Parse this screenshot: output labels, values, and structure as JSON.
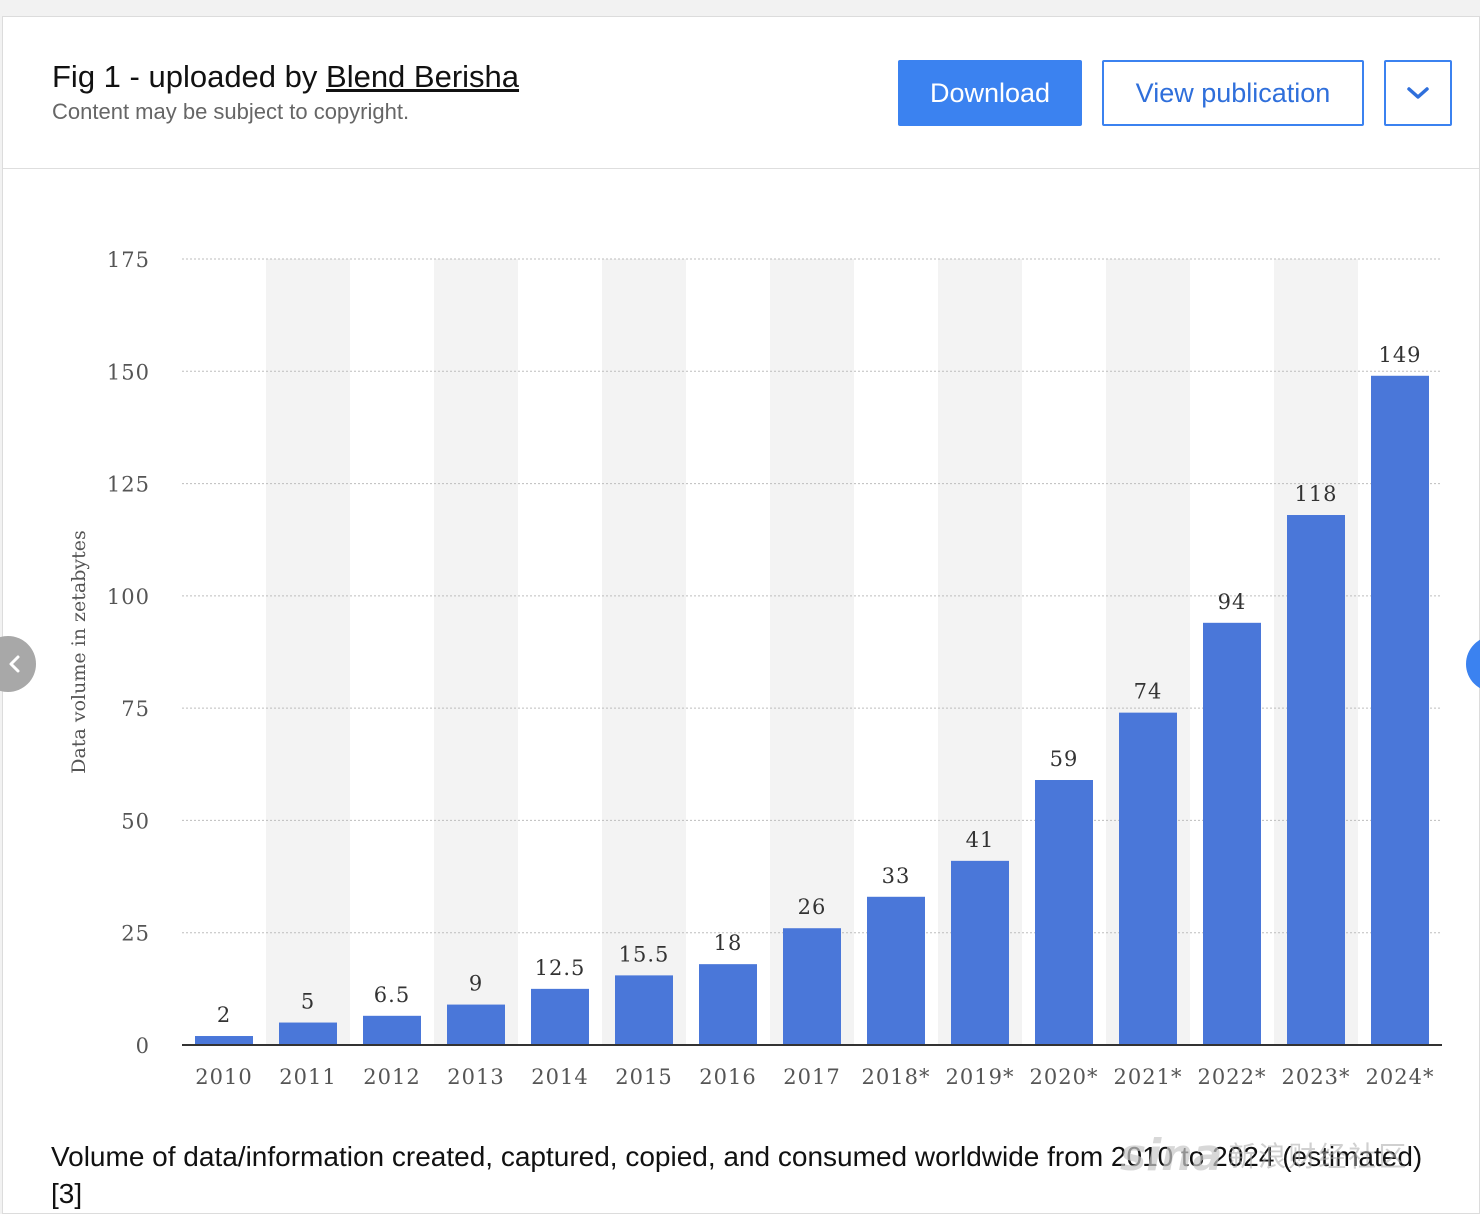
{
  "header": {
    "title_prefix": "Fig 1 - uploaded by ",
    "author": "Blend Berisha",
    "subtitle": "Content may be subject to copyright.",
    "download_label": "Download",
    "view_publication_label": "View publication",
    "more_icon": "chevron-down-icon"
  },
  "navigation": {
    "prev_icon": "chevron-left-icon",
    "next_icon": "chevron-right-icon"
  },
  "caption": "Volume of data/information created, captured, copied, and consumed worldwide from 2010 to 2024 (estimated) [3]",
  "watermark": {
    "brand": "sina",
    "text": "新浪财经社区"
  },
  "colors": {
    "accent": "#3b82f0",
    "bar": "#4a77d9",
    "band": "#f3f3f3"
  },
  "chart_data": {
    "type": "bar",
    "title": "",
    "xlabel": "",
    "ylabel": "Data volume in zetabytes",
    "ylim": [
      0,
      175
    ],
    "yticks": [
      0,
      25,
      50,
      75,
      100,
      125,
      150,
      175
    ],
    "grid": true,
    "categories": [
      "2010",
      "2011",
      "2012",
      "2013",
      "2014",
      "2015",
      "2016",
      "2017",
      "2018*",
      "2019*",
      "2020*",
      "2021*",
      "2022*",
      "2023*",
      "2024*"
    ],
    "values": [
      2,
      5,
      6.5,
      9,
      12.5,
      15.5,
      18,
      26,
      33,
      41,
      59,
      74,
      94,
      118,
      149
    ],
    "value_labels": [
      "2",
      "5",
      "6.5",
      "9",
      "12.5",
      "15.5",
      "18",
      "26",
      "33",
      "41",
      "59",
      "74",
      "94",
      "118",
      "149"
    ]
  }
}
